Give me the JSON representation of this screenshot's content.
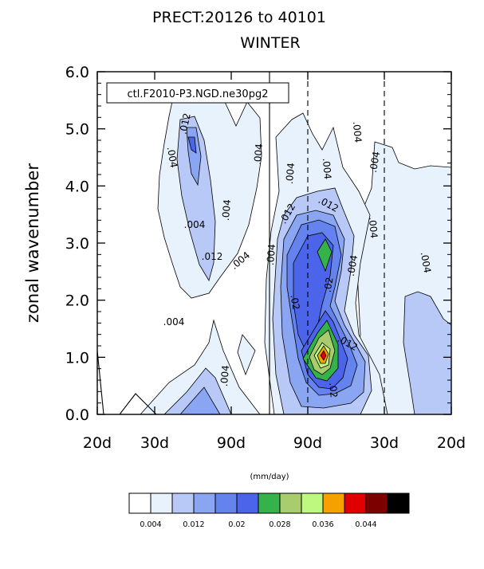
{
  "chart_data": {
    "type": "contour",
    "title": "PRECT:20126 to 40101",
    "subtitle": "WINTER",
    "legend_label": "ctl.F2010-P3.NGD.ne30pg2",
    "ylabel": "zonal wavenumber",
    "xlabel": "",
    "ylim": [
      0,
      6
    ],
    "y_ticks": [
      "0.0",
      "1.0",
      "2.0",
      "3.0",
      "4.0",
      "5.0",
      "6.0"
    ],
    "x_ticks": [
      "20d",
      "30d",
      "90d",
      "90d",
      "30d",
      "20d"
    ],
    "units": "(mm/day)",
    "contour_interval": 0.004,
    "contour_labels": [
      ".004",
      ".012",
      ".02"
    ],
    "colorbar": {
      "labels": [
        "0.004",
        "0.012",
        "0.02",
        "0.028",
        "0.036",
        "0.044"
      ],
      "colors": [
        "#ffffff",
        "#e8f2fc",
        "#b9c9f7",
        "#8aa6f2",
        "#6483ee",
        "#4c64ea",
        "#35b34a",
        "#a9cc6f",
        "#bff87e",
        "#f5a100",
        "#e00000",
        "#7c0000",
        "#000000"
      ]
    }
  }
}
